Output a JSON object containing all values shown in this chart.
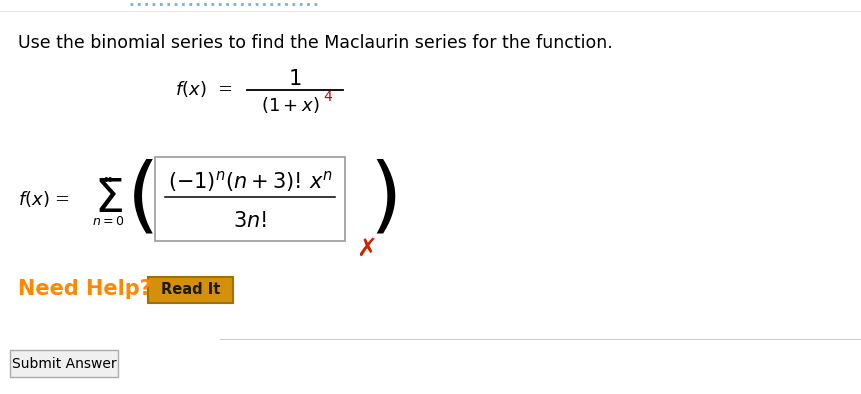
{
  "background_color": "#ffffff",
  "instruction_text": "Use the binomial series to find the Maclaurin series for the function.",
  "instruction_color": "#000000",
  "instruction_fontsize": 12.5,
  "exponent_color": "#cc0000",
  "cross_color": "#cc2200",
  "need_help_text": "Need Help?",
  "need_help_color": "#ff8800",
  "read_it_text": "Read It",
  "read_it_bg": "#d4900a",
  "read_it_border": "#a07000",
  "submit_text": "Submit Answer",
  "submit_bg": "#f0f0f0",
  "submit_border": "#aaaaaa",
  "bottom_line_color": "#cccccc",
  "dotted_line_color": "#7ab0d8",
  "fig_width": 8.62,
  "fig_height": 3.94,
  "dpi": 100
}
